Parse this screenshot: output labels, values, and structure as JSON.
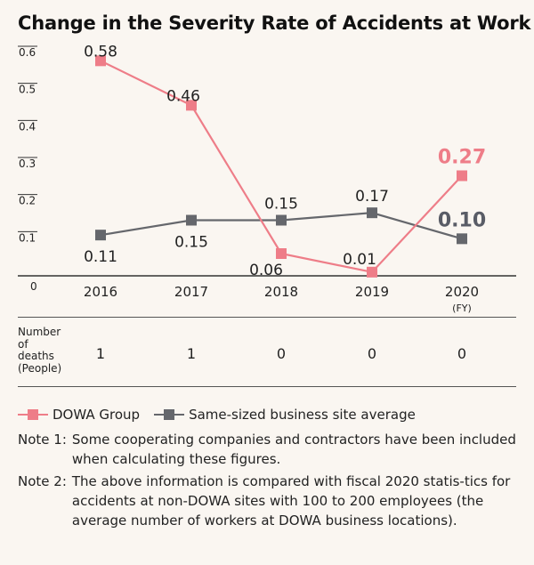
{
  "title": "Change in the Severity Rate of Accidents at Work",
  "chart_data": {
    "type": "line",
    "title": "Change in the Severity Rate of Accidents at Work",
    "categories": [
      "2016",
      "2017",
      "2018",
      "2019",
      "2020"
    ],
    "x_unit": "(FY)",
    "y_ticks": [
      "0.6",
      "0.5",
      "0.4",
      "0.3",
      "0.2",
      "0.1",
      "0"
    ],
    "ylim": [
      0,
      0.6
    ],
    "grid": false,
    "series": [
      {
        "name": "DOWA Group",
        "color": "#ee7d88",
        "values": [
          0.58,
          0.46,
          0.06,
          0.01,
          0.27
        ],
        "labels": [
          "0.58",
          "0.46",
          "0.06",
          "0.01",
          "0.27"
        ]
      },
      {
        "name": "Same-sized business site average",
        "color": "#65676c",
        "values": [
          0.11,
          0.15,
          0.15,
          0.17,
          0.1
        ],
        "labels": [
          "0.11",
          "0.15",
          "0.15",
          "0.17",
          "0.10"
        ]
      }
    ],
    "legend_position": "bottom"
  },
  "deaths": {
    "header_lines": [
      "Number",
      "of",
      "deaths",
      "(People)"
    ],
    "values": [
      "1",
      "1",
      "0",
      "0",
      "0"
    ]
  },
  "notes": [
    {
      "label": "Note 1:",
      "text": "Some cooperating companies and contractors have been included when calculating these figures."
    },
    {
      "label": "Note 2:",
      "text": "The above information is compared with fiscal 2020 statis-tics for accidents at non-DOWA sites with 100 to 200 employees (the average number of workers at DOWA business locations)."
    }
  ]
}
